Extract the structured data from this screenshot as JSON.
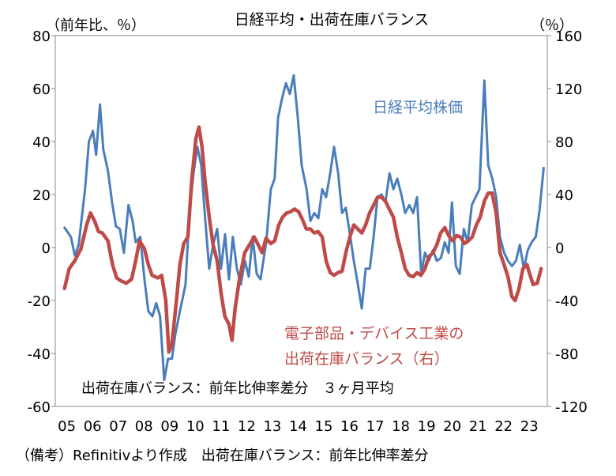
{
  "chart_data": {
    "type": "line",
    "title": "日経平均・出荷在庫バランス",
    "ylabel_left": "（前年比、％）",
    "ylabel_right": "（％）",
    "ylim_left": [
      -60,
      80
    ],
    "ylim_right": [
      -120,
      160
    ],
    "yticks_left": [
      80,
      60,
      40,
      20,
      0,
      -20,
      -40,
      -60
    ],
    "yticks_right": [
      160,
      120,
      80,
      40,
      0,
      -40,
      -80,
      -120
    ],
    "xlim": [
      2004.55,
      2023.7
    ],
    "xtick_labels": [
      "05",
      "06",
      "07",
      "08",
      "09",
      "10",
      "11",
      "12",
      "13",
      "14",
      "15",
      "16",
      "17",
      "18",
      "19",
      "20",
      "21",
      "22",
      "23"
    ],
    "grid": false,
    "note": "出荷在庫バランス：前年比伸率差分　３ヶ月平均",
    "source": "（備考）Refinitivより作成　出荷在庫バランス：前年比伸率差分",
    "colors": {
      "nikkei": "#4a7ebb",
      "balance": "#be4b48"
    },
    "series": [
      {
        "name": "日経平均株価",
        "axis": "left",
        "points": [
          [
            2004.91,
            7.5
          ],
          [
            2005.16,
            4
          ],
          [
            2005.31,
            -3
          ],
          [
            2005.46,
            1
          ],
          [
            2005.71,
            22
          ],
          [
            2005.86,
            40
          ],
          [
            2006.02,
            44
          ],
          [
            2006.14,
            35
          ],
          [
            2006.29,
            54
          ],
          [
            2006.42,
            37
          ],
          [
            2006.6,
            29
          ],
          [
            2006.76,
            17
          ],
          [
            2006.91,
            8
          ],
          [
            2007.06,
            7
          ],
          [
            2007.22,
            -2
          ],
          [
            2007.4,
            16
          ],
          [
            2007.56,
            10
          ],
          [
            2007.68,
            2
          ],
          [
            2007.86,
            4
          ],
          [
            2008.02,
            -12
          ],
          [
            2008.17,
            -24
          ],
          [
            2008.33,
            -26
          ],
          [
            2008.48,
            -21
          ],
          [
            2008.63,
            -26
          ],
          [
            2008.79,
            -50
          ],
          [
            2008.94,
            -42
          ],
          [
            2009.09,
            -42
          ],
          [
            2009.22,
            -33
          ],
          [
            2009.4,
            -24
          ],
          [
            2009.62,
            -14
          ],
          [
            2009.77,
            13
          ],
          [
            2009.93,
            28
          ],
          [
            2010.08,
            38
          ],
          [
            2010.23,
            31
          ],
          [
            2010.39,
            10
          ],
          [
            2010.54,
            -8
          ],
          [
            2010.69,
            1
          ],
          [
            2010.85,
            7
          ],
          [
            2011.0,
            -8
          ],
          [
            2011.16,
            5
          ],
          [
            2011.31,
            -12
          ],
          [
            2011.46,
            4
          ],
          [
            2011.62,
            -8
          ],
          [
            2011.77,
            -14
          ],
          [
            2011.93,
            -5
          ],
          [
            2012.08,
            -11
          ],
          [
            2012.23,
            4
          ],
          [
            2012.39,
            -10
          ],
          [
            2012.54,
            -12
          ],
          [
            2012.76,
            2
          ],
          [
            2012.94,
            22
          ],
          [
            2013.09,
            26
          ],
          [
            2013.22,
            49
          ],
          [
            2013.37,
            56
          ],
          [
            2013.53,
            62
          ],
          [
            2013.68,
            58
          ],
          [
            2013.83,
            65
          ],
          [
            2013.99,
            49
          ],
          [
            2014.14,
            31
          ],
          [
            2014.33,
            22
          ],
          [
            2014.48,
            10
          ],
          [
            2014.63,
            13
          ],
          [
            2014.79,
            11
          ],
          [
            2014.94,
            22
          ],
          [
            2015.09,
            19
          ],
          [
            2015.25,
            28
          ],
          [
            2015.4,
            38
          ],
          [
            2015.56,
            28
          ],
          [
            2015.71,
            13
          ],
          [
            2015.86,
            15
          ],
          [
            2016.02,
            5
          ],
          [
            2016.17,
            -5
          ],
          [
            2016.33,
            -14
          ],
          [
            2016.48,
            -23
          ],
          [
            2016.63,
            -8
          ],
          [
            2016.79,
            -8
          ],
          [
            2016.94,
            4
          ],
          [
            2017.09,
            19
          ],
          [
            2017.25,
            20
          ],
          [
            2017.4,
            17
          ],
          [
            2017.56,
            28
          ],
          [
            2017.71,
            22
          ],
          [
            2017.86,
            26
          ],
          [
            2018.02,
            20
          ],
          [
            2018.17,
            13
          ],
          [
            2018.33,
            16
          ],
          [
            2018.48,
            13
          ],
          [
            2018.63,
            19
          ],
          [
            2018.79,
            -10
          ],
          [
            2018.94,
            -2
          ],
          [
            2019.09,
            -5
          ],
          [
            2019.25,
            -1
          ],
          [
            2019.4,
            -5
          ],
          [
            2019.56,
            -4
          ],
          [
            2019.71,
            2
          ],
          [
            2019.86,
            -2
          ],
          [
            2019.99,
            17
          ],
          [
            2020.14,
            -7
          ],
          [
            2020.29,
            -10
          ],
          [
            2020.45,
            7
          ],
          [
            2020.6,
            2
          ],
          [
            2020.76,
            16
          ],
          [
            2020.91,
            19
          ],
          [
            2021.06,
            22
          ],
          [
            2021.25,
            63
          ],
          [
            2021.4,
            31
          ],
          [
            2021.56,
            26
          ],
          [
            2021.71,
            19
          ],
          [
            2021.86,
            4
          ],
          [
            2022.02,
            -2
          ],
          [
            2022.17,
            -5
          ],
          [
            2022.33,
            -7
          ],
          [
            2022.48,
            -5
          ],
          [
            2022.63,
            1
          ],
          [
            2022.79,
            -8
          ],
          [
            2022.94,
            -1
          ],
          [
            2023.09,
            2
          ],
          [
            2023.25,
            4
          ],
          [
            2023.4,
            14
          ],
          [
            2023.56,
            30
          ]
        ]
      },
      {
        "name": "電子部品・デバイス工業の出荷在庫バランス（右）",
        "label_line1": "電子部品・デバイス工業の",
        "label_line2": "出荷在庫バランス（右）",
        "axis": "right",
        "points": [
          [
            2004.91,
            -31
          ],
          [
            2005.09,
            -16
          ],
          [
            2005.31,
            -10
          ],
          [
            2005.55,
            -1
          ],
          [
            2005.77,
            17
          ],
          [
            2005.92,
            26
          ],
          [
            2006.08,
            20
          ],
          [
            2006.23,
            12
          ],
          [
            2006.38,
            11
          ],
          [
            2006.6,
            5
          ],
          [
            2006.78,
            -13
          ],
          [
            2006.94,
            -23
          ],
          [
            2007.09,
            -25
          ],
          [
            2007.31,
            -27
          ],
          [
            2007.52,
            -24
          ],
          [
            2007.68,
            -10
          ],
          [
            2007.83,
            5
          ],
          [
            2008.02,
            -1
          ],
          [
            2008.17,
            -13
          ],
          [
            2008.32,
            -21
          ],
          [
            2008.54,
            -23
          ],
          [
            2008.69,
            -21
          ],
          [
            2008.85,
            -40
          ],
          [
            2008.97,
            -79
          ],
          [
            2009.09,
            -73
          ],
          [
            2009.25,
            -43
          ],
          [
            2009.4,
            -13
          ],
          [
            2009.55,
            3
          ],
          [
            2009.71,
            8
          ],
          [
            2009.86,
            50
          ],
          [
            2010.02,
            82
          ],
          [
            2010.14,
            91
          ],
          [
            2010.26,
            76
          ],
          [
            2010.38,
            50
          ],
          [
            2010.54,
            23
          ],
          [
            2010.69,
            2
          ],
          [
            2010.85,
            -10
          ],
          [
            2011.0,
            -34
          ],
          [
            2011.15,
            -52
          ],
          [
            2011.31,
            -58
          ],
          [
            2011.43,
            -70
          ],
          [
            2011.55,
            -46
          ],
          [
            2011.71,
            -25
          ],
          [
            2011.92,
            -4
          ],
          [
            2012.11,
            2
          ],
          [
            2012.29,
            8
          ],
          [
            2012.45,
            2
          ],
          [
            2012.6,
            -4
          ],
          [
            2012.75,
            7
          ],
          [
            2012.94,
            3
          ],
          [
            2013.09,
            5
          ],
          [
            2013.25,
            17
          ],
          [
            2013.4,
            23
          ],
          [
            2013.55,
            26
          ],
          [
            2013.71,
            27
          ],
          [
            2013.86,
            29
          ],
          [
            2014.02,
            27
          ],
          [
            2014.17,
            21
          ],
          [
            2014.32,
            14
          ],
          [
            2014.48,
            14
          ],
          [
            2014.63,
            11
          ],
          [
            2014.78,
            12
          ],
          [
            2014.94,
            8
          ],
          [
            2015.09,
            -10
          ],
          [
            2015.25,
            -19
          ],
          [
            2015.4,
            -21
          ],
          [
            2015.55,
            -19
          ],
          [
            2015.71,
            -18
          ],
          [
            2015.86,
            -4
          ],
          [
            2016.02,
            8
          ],
          [
            2016.17,
            17
          ],
          [
            2016.32,
            14
          ],
          [
            2016.48,
            11
          ],
          [
            2016.63,
            17
          ],
          [
            2016.78,
            26
          ],
          [
            2016.94,
            32
          ],
          [
            2017.09,
            38
          ],
          [
            2017.25,
            38
          ],
          [
            2017.4,
            35
          ],
          [
            2017.55,
            29
          ],
          [
            2017.71,
            23
          ],
          [
            2017.86,
            8
          ],
          [
            2018.02,
            -4
          ],
          [
            2018.17,
            -16
          ],
          [
            2018.32,
            -21
          ],
          [
            2018.48,
            -22
          ],
          [
            2018.63,
            -19
          ],
          [
            2018.78,
            -21
          ],
          [
            2018.94,
            -16
          ],
          [
            2019.09,
            -7
          ],
          [
            2019.25,
            -4
          ],
          [
            2019.4,
            2
          ],
          [
            2019.55,
            11
          ],
          [
            2019.71,
            15
          ],
          [
            2019.86,
            9
          ],
          [
            2020.02,
            5
          ],
          [
            2020.17,
            9
          ],
          [
            2020.32,
            8
          ],
          [
            2020.48,
            3
          ],
          [
            2020.63,
            5
          ],
          [
            2020.78,
            8
          ],
          [
            2020.94,
            17
          ],
          [
            2021.09,
            23
          ],
          [
            2021.25,
            35
          ],
          [
            2021.4,
            41
          ],
          [
            2021.55,
            41
          ],
          [
            2021.71,
            26
          ],
          [
            2021.86,
            -4
          ],
          [
            2022.02,
            -13
          ],
          [
            2022.17,
            -22
          ],
          [
            2022.32,
            -37
          ],
          [
            2022.45,
            -40
          ],
          [
            2022.6,
            -31
          ],
          [
            2022.75,
            -16
          ],
          [
            2022.91,
            -13
          ],
          [
            2023.0,
            -19
          ],
          [
            2023.15,
            -28
          ],
          [
            2023.31,
            -27
          ],
          [
            2023.46,
            -16
          ]
        ]
      }
    ]
  }
}
